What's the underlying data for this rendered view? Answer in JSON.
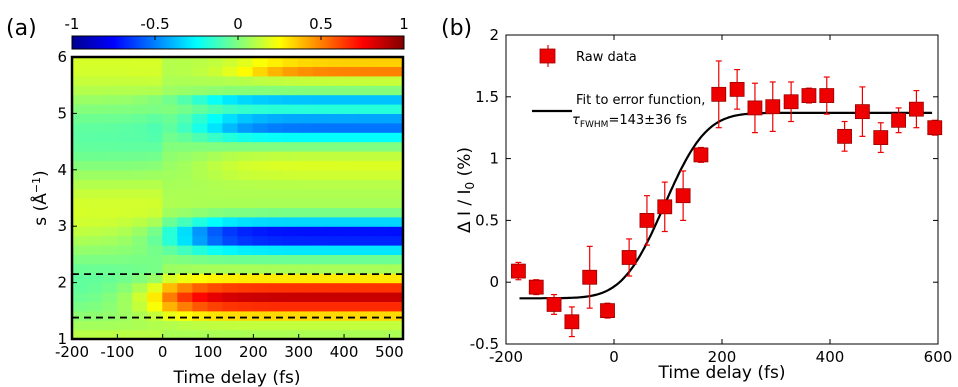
{
  "chart_data": [
    {
      "type": "heatmap",
      "panel_label": "(a)",
      "xlabel": "Time delay (fs)",
      "ylabel_main": "s (Å",
      "ylabel_exp": "−1",
      "ylabel_close": ")",
      "xlim": [
        -200,
        530
      ],
      "ylim": [
        1,
        6
      ],
      "xticks": [
        "-200",
        "-100",
        "0",
        "100",
        "200",
        "300",
        "400",
        "500"
      ],
      "xtick_values": [
        -200,
        -100,
        0,
        100,
        200,
        300,
        400,
        500
      ],
      "yticks": [
        "1",
        "2",
        "3",
        "4",
        "5",
        "6"
      ],
      "ytick_values": [
        1,
        2,
        3,
        4,
        5,
        6
      ],
      "colorbar": {
        "range": [
          -1,
          1
        ],
        "ticks": [
          "-1",
          "-0.5",
          "0",
          "0.5",
          "1"
        ],
        "tick_values": [
          -1,
          -0.5,
          0,
          0.5,
          1
        ],
        "colormap": "jet"
      },
      "dashed_lines_s": [
        1.38,
        2.15
      ],
      "bands": [
        {
          "s_center": 1.75,
          "s_width": 0.32,
          "amplitude": 0.85,
          "onset_fs": 0,
          "note": "positive (red)"
        },
        {
          "s_center": 2.85,
          "s_width": 0.28,
          "amplitude": -0.85,
          "onset_fs": 50,
          "note": "negative (blue)"
        },
        {
          "s_center": 4.8,
          "s_width": 0.25,
          "amplitude": -0.55,
          "onset_fs": 100,
          "note": "negative (blue)"
        },
        {
          "s_center": 5.25,
          "s_width": 0.12,
          "amplitude": -0.4,
          "onset_fs": 80,
          "note": "negative (blue)"
        },
        {
          "s_center": 4.1,
          "s_width": 0.3,
          "amplitude": 0.15,
          "onset_fs": 100,
          "note": "weak positive"
        },
        {
          "s_center": 5.8,
          "s_width": 0.15,
          "amplitude": 0.45,
          "onset_fs": 200,
          "note": "positive"
        }
      ]
    },
    {
      "type": "scatter",
      "panel_label": "(b)",
      "xlabel": "Time delay (fs)",
      "ylabel": "Δ I / I",
      "ylabel_sub": "0",
      "ylabel_unit": " (%)",
      "xlim": [
        -200,
        600
      ],
      "ylim": [
        -0.5,
        2
      ],
      "xticks": [
        "-200",
        "0",
        "200",
        "400",
        "600"
      ],
      "xtick_values": [
        -200,
        0,
        200,
        400,
        600
      ],
      "yticks": [
        "-0.5",
        "0",
        "0.5",
        "1",
        "1.5",
        "2"
      ],
      "ytick_values": [
        -0.5,
        0,
        0.5,
        1,
        1.5,
        2
      ],
      "series": [
        {
          "name": "Raw data",
          "marker": "square",
          "color": "#ee0000",
          "x": [
            -177,
            -144,
            -111,
            -78,
            -45,
            -12,
            28,
            61,
            94,
            128,
            161,
            194,
            228,
            261,
            294,
            328,
            361,
            394,
            427,
            460,
            494,
            527,
            560,
            594
          ],
          "y": [
            0.09,
            -0.04,
            -0.18,
            -0.32,
            0.04,
            -0.23,
            0.2,
            0.5,
            0.61,
            0.7,
            1.03,
            1.52,
            1.56,
            1.41,
            1.42,
            1.46,
            1.51,
            1.51,
            1.18,
            1.38,
            1.17,
            1.31,
            1.4,
            1.25
          ],
          "yerr": [
            0.07,
            0.06,
            0.08,
            0.12,
            0.25,
            0.06,
            0.15,
            0.2,
            0.2,
            0.2,
            0.06,
            0.27,
            0.16,
            0.2,
            0.2,
            0.16,
            0.06,
            0.15,
            0.12,
            0.2,
            0.12,
            0.1,
            0.15,
            0.06
          ]
        },
        {
          "name": "Fit to error function,",
          "name_tau": "τ",
          "name_sub": "FWHM",
          "name_value": "=143±36 fs",
          "type": "line",
          "color": "#000000",
          "fit": {
            "baseline": -0.13,
            "amplitude": 1.5,
            "t0_fs": 93,
            "fwhm_fs": 143
          },
          "x_range": [
            -175,
            590
          ]
        }
      ],
      "legend_position": "top-left"
    }
  ]
}
